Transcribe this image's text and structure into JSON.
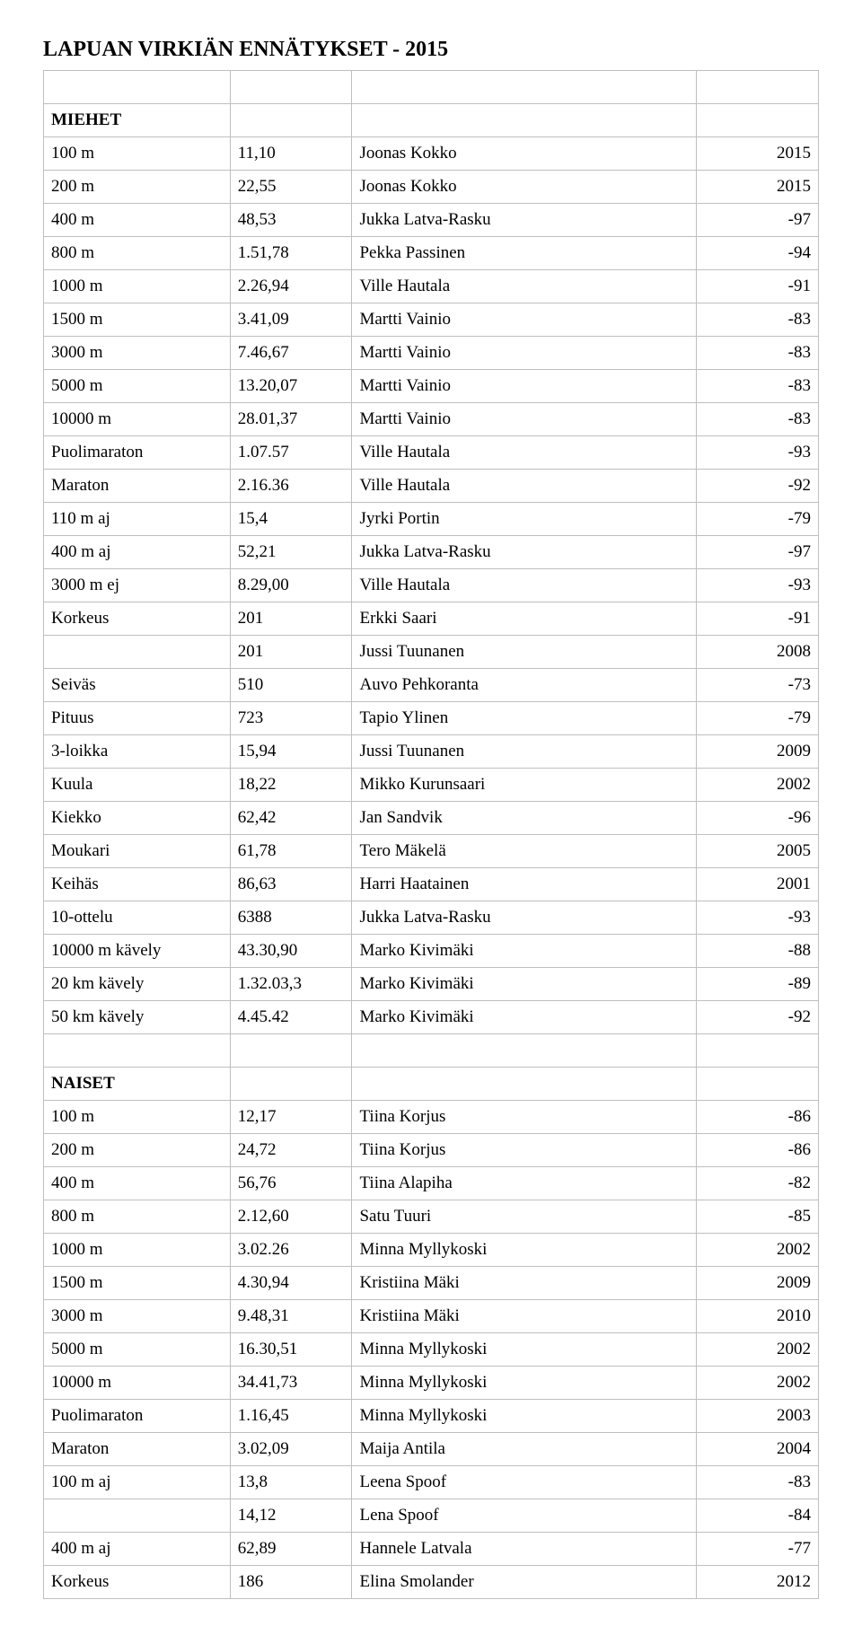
{
  "title": "LAPUAN VIRKIÄN ENNÄTYKSET  -  2015",
  "sections": [
    {
      "header": "MIEHET",
      "rows": [
        {
          "event": "100 m",
          "value": "11,10",
          "name": "Joonas Kokko",
          "year": "2015"
        },
        {
          "event": "200 m",
          "value": "22,55",
          "name": "Joonas Kokko",
          "year": "2015"
        },
        {
          "event": "400 m",
          "value": "48,53",
          "name": "Jukka Latva-Rasku",
          "year": "-97"
        },
        {
          "event": "800 m",
          "value": "1.51,78",
          "name": "Pekka Passinen",
          "year": "-94"
        },
        {
          "event": "1000 m",
          "value": "2.26,94",
          "name": "Ville Hautala",
          "year": "-91"
        },
        {
          "event": "1500 m",
          "value": "3.41,09",
          "name": "Martti Vainio",
          "year": "-83"
        },
        {
          "event": "3000 m",
          "value": "7.46,67",
          "name": "Martti Vainio",
          "year": "-83"
        },
        {
          "event": "5000 m",
          "value": "13.20,07",
          "name": "Martti Vainio",
          "year": "-83"
        },
        {
          "event": "10000 m",
          "value": "28.01,37",
          "name": "Martti Vainio",
          "year": "-83"
        },
        {
          "event": "Puolimaraton",
          "value": "1.07.57",
          "name": "Ville Hautala",
          "year": "-93"
        },
        {
          "event": "Maraton",
          "value": "2.16.36",
          "name": "Ville Hautala",
          "year": "-92"
        },
        {
          "event": "110 m aj",
          "value": "15,4",
          "name": "Jyrki Portin",
          "year": "-79"
        },
        {
          "event": "400 m aj",
          "value": "52,21",
          "name": "Jukka Latva-Rasku",
          "year": "-97"
        },
        {
          "event": "3000 m ej",
          "value": "8.29,00",
          "name": "Ville Hautala",
          "year": "-93"
        },
        {
          "event": "Korkeus",
          "value": "201",
          "name": "Erkki Saari",
          "year": "-91"
        },
        {
          "event": "",
          "value": "201",
          "name": "Jussi Tuunanen",
          "year": "2008"
        },
        {
          "event": "Seiväs",
          "value": "510",
          "name": "Auvo Pehkoranta",
          "year": "-73"
        },
        {
          "event": "Pituus",
          "value": "723",
          "name": "Tapio Ylinen",
          "year": "-79"
        },
        {
          "event": "3-loikka",
          "value": "15,94",
          "name": "Jussi Tuunanen",
          "year": "2009"
        },
        {
          "event": "Kuula",
          "value": "18,22",
          "name": "Mikko Kurunsaari",
          "year": "2002"
        },
        {
          "event": "Kiekko",
          "value": "62,42",
          "name": "Jan Sandvik",
          "year": "-96"
        },
        {
          "event": "Moukari",
          "value": "61,78",
          "name": "Tero Mäkelä",
          "year": "2005"
        },
        {
          "event": "Keihäs",
          "value": "86,63",
          "name": "Harri Haatainen",
          "year": "2001"
        },
        {
          "event": "10-ottelu",
          "value": "6388",
          "name": "Jukka Latva-Rasku",
          "year": "-93"
        },
        {
          "event": "10000 m kävely",
          "value": "43.30,90",
          "name": "Marko Kivimäki",
          "year": "-88"
        },
        {
          "event": "20 km  kävely",
          "value": "1.32.03,3",
          "name": "Marko Kivimäki",
          "year": "-89"
        },
        {
          "event": "50 km  kävely",
          "value": "4.45.42",
          "name": "Marko Kivimäki",
          "year": "-92"
        }
      ]
    },
    {
      "header": "NAISET",
      "rows": [
        {
          "event": "100 m",
          "value": "12,17",
          "name": "Tiina Korjus",
          "year": "-86"
        },
        {
          "event": "200 m",
          "value": "24,72",
          "name": "Tiina Korjus",
          "year": "-86"
        },
        {
          "event": "400 m",
          "value": "56,76",
          "name": "Tiina Alapiha",
          "year": "-82"
        },
        {
          "event": "800 m",
          "value": "2.12,60",
          "name": "Satu Tuuri",
          "year": "-85"
        },
        {
          "event": "1000 m",
          "value": "3.02.26",
          "name": "Minna Myllykoski",
          "year": "2002"
        },
        {
          "event": "1500 m",
          "value": "4.30,94",
          "name": "Kristiina Mäki",
          "year": "2009"
        },
        {
          "event": "3000 m",
          "value": "9.48,31",
          "name": "Kristiina Mäki",
          "year": "2010"
        },
        {
          "event": "5000 m",
          "value": "16.30,51",
          "name": "Minna Myllykoski",
          "year": "2002"
        },
        {
          "event": "10000 m",
          "value": "34.41,73",
          "name": "Minna Myllykoski",
          "year": "2002"
        },
        {
          "event": "Puolimaraton",
          "value": "1.16,45",
          "name": "Minna Myllykoski",
          "year": "2003"
        },
        {
          "event": "Maraton",
          "value": "3.02,09",
          "name": "Maija Antila",
          "year": "2004"
        },
        {
          "event": "100 m aj",
          "value": "13,8",
          "name": "Leena Spoof",
          "year": "-83"
        },
        {
          "event": "",
          "value": "14,12",
          "name": "Lena Spoof",
          "year": "-84"
        },
        {
          "event": "400 m aj",
          "value": "62,89",
          "name": "Hannele Latvala",
          "year": "-77"
        },
        {
          "event": "Korkeus",
          "value": "186",
          "name": "Elina Smolander",
          "year": "2012"
        }
      ]
    }
  ]
}
